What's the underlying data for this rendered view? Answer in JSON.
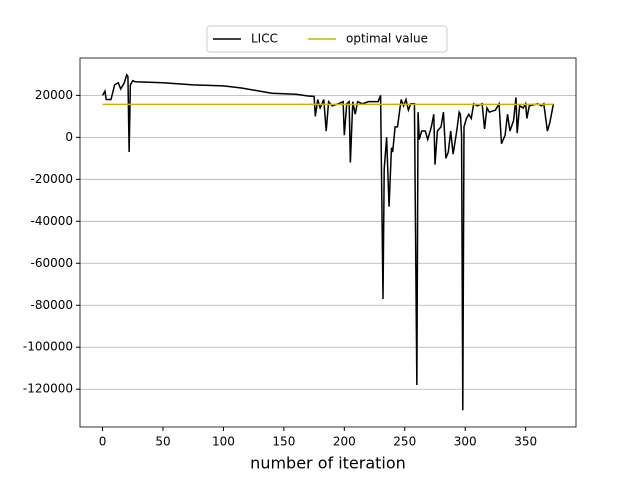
{
  "chart_data": {
    "type": "line",
    "x_label": "number of iteration",
    "x": [
      0,
      2,
      3,
      7,
      10,
      13,
      15,
      18,
      20,
      21,
      22,
      23,
      25,
      27,
      50,
      75,
      100,
      115,
      130,
      140,
      160,
      170,
      175,
      176,
      178,
      180,
      183,
      185,
      187,
      190,
      195,
      199,
      200,
      202,
      204,
      205,
      207,
      209,
      211,
      215,
      220,
      228,
      230,
      232,
      233,
      235,
      237,
      239,
      240,
      242,
      244,
      247,
      249,
      251,
      253,
      255,
      258,
      260,
      261,
      262,
      264,
      267,
      269,
      272,
      274,
      275,
      277,
      280,
      282,
      284,
      286,
      288,
      290,
      293,
      295,
      296,
      297,
      298,
      299,
      301,
      303,
      305,
      307,
      310,
      314,
      316,
      318,
      320,
      325,
      328,
      330,
      333,
      335,
      337,
      340,
      342,
      343,
      345,
      348,
      350,
      351,
      353,
      360,
      363,
      365,
      368,
      370,
      373
    ],
    "series": [
      {
        "name": "LICC",
        "color": "#000000",
        "values": [
          20000,
          22000,
          18000,
          18000,
          25000,
          26000,
          23000,
          26000,
          29800,
          29000,
          -7000,
          25000,
          27000,
          26500,
          26000,
          25000,
          24500,
          23500,
          22000,
          21000,
          20500,
          19700,
          19500,
          10000,
          18000,
          14000,
          18000,
          3000,
          17000,
          15000,
          16000,
          17000,
          1000,
          16000,
          17000,
          -12000,
          17000,
          11000,
          17000,
          16000,
          17000,
          17000,
          20000,
          -77000,
          -15000,
          0,
          -33000,
          -5000,
          -7000,
          5000,
          5000,
          18000,
          15000,
          18000,
          13000,
          16000,
          16000,
          -118000,
          12000,
          -1000,
          3000,
          3000,
          -1000,
          5000,
          11000,
          -13000,
          3000,
          5000,
          12000,
          -10000,
          -7000,
          3000,
          -8000,
          3000,
          12000,
          11000,
          1000,
          -130000,
          5000,
          9000,
          11000,
          9000,
          16000,
          15000,
          16000,
          4000,
          14000,
          12000,
          13000,
          16000,
          -3000,
          1000,
          11000,
          3000,
          8000,
          19000,
          2000,
          15000,
          14000,
          16000,
          9000,
          15000,
          16000,
          15000,
          16000,
          3000,
          7000,
          16000
        ]
      },
      {
        "name": "optimal value",
        "color": "#c8b400",
        "x": [
          0,
          373
        ],
        "values": [
          15700,
          15700
        ]
      }
    ],
    "xlim": [
      -18.65,
      391.65
    ],
    "xticks": [
      0,
      50,
      100,
      150,
      200,
      250,
      300,
      350
    ],
    "ylim": [
      -138000,
      37800
    ],
    "yticks": [
      -120000,
      -100000,
      -80000,
      -60000,
      -40000,
      -20000,
      0,
      20000
    ],
    "grid": "y",
    "legend": "upper center"
  }
}
